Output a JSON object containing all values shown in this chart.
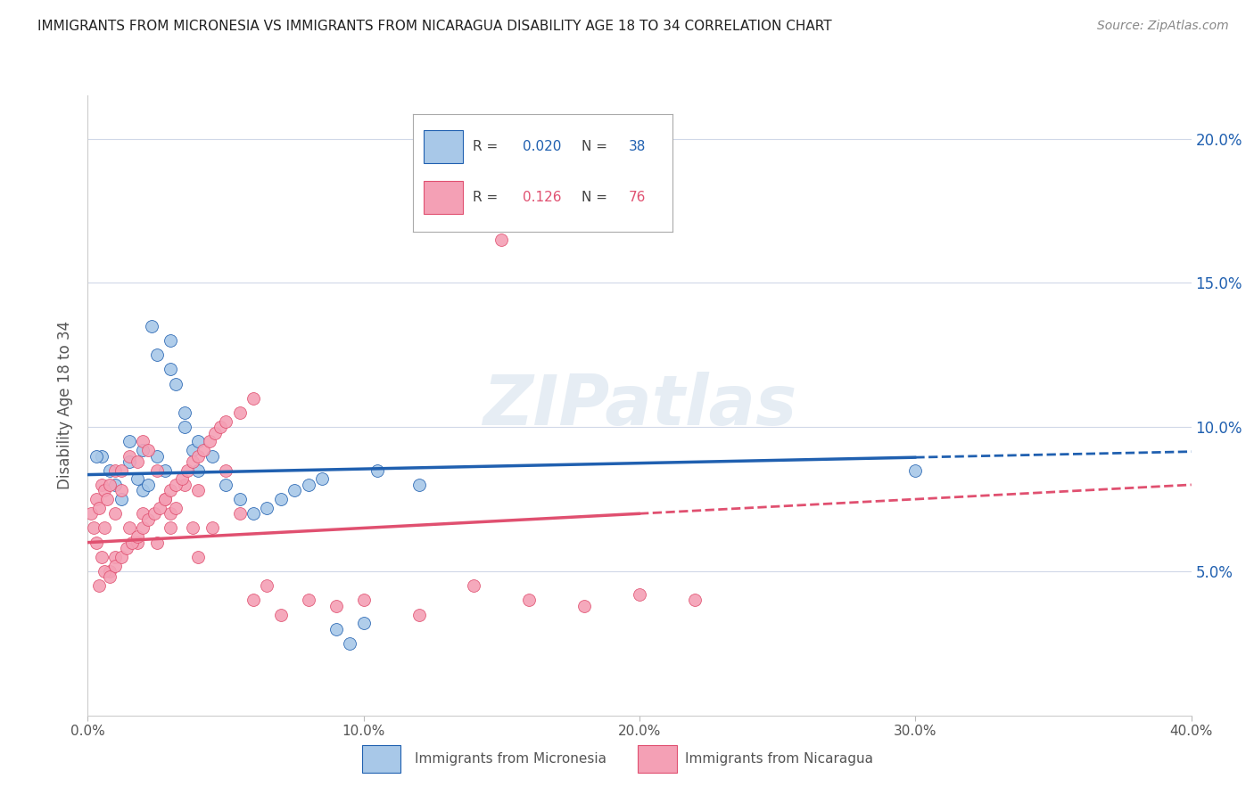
{
  "title": "IMMIGRANTS FROM MICRONESIA VS IMMIGRANTS FROM NICARAGUA DISABILITY AGE 18 TO 34 CORRELATION CHART",
  "source": "Source: ZipAtlas.com",
  "ylabel": "Disability Age 18 to 34",
  "ytick_values": [
    5.0,
    10.0,
    15.0,
    20.0
  ],
  "xtick_values": [
    0.0,
    10.0,
    20.0,
    30.0,
    40.0
  ],
  "xlim": [
    0.0,
    40.0
  ],
  "ylim": [
    0.0,
    21.5
  ],
  "legend1_R": "0.020",
  "legend1_N": "38",
  "legend2_R": "0.126",
  "legend2_N": "76",
  "color_blue": "#a8c8e8",
  "color_pink": "#f4a0b5",
  "line_blue": "#2060b0",
  "line_pink": "#e05070",
  "watermark": "ZIPatlas",
  "micronesia_x": [
    0.5,
    0.8,
    1.0,
    1.2,
    1.5,
    1.5,
    1.8,
    2.0,
    2.0,
    2.2,
    2.3,
    2.5,
    2.5,
    2.8,
    3.0,
    3.0,
    3.2,
    3.5,
    3.5,
    3.8,
    4.0,
    4.0,
    4.5,
    5.0,
    5.5,
    6.0,
    6.5,
    7.0,
    7.5,
    8.0,
    8.5,
    9.0,
    9.5,
    10.0,
    10.5,
    12.0,
    30.0,
    0.3
  ],
  "micronesia_y": [
    9.0,
    8.5,
    8.0,
    7.5,
    9.5,
    8.8,
    8.2,
    7.8,
    9.2,
    8.0,
    13.5,
    12.5,
    9.0,
    8.5,
    13.0,
    12.0,
    11.5,
    10.5,
    10.0,
    9.2,
    9.5,
    8.5,
    9.0,
    8.0,
    7.5,
    7.0,
    7.2,
    7.5,
    7.8,
    8.0,
    8.2,
    3.0,
    2.5,
    3.2,
    8.5,
    8.0,
    8.5,
    9.0
  ],
  "nicaragua_x": [
    0.1,
    0.2,
    0.3,
    0.3,
    0.4,
    0.5,
    0.5,
    0.6,
    0.6,
    0.7,
    0.8,
    0.8,
    1.0,
    1.0,
    1.0,
    1.2,
    1.2,
    1.5,
    1.5,
    1.8,
    1.8,
    2.0,
    2.0,
    2.2,
    2.5,
    2.5,
    2.8,
    3.0,
    3.0,
    3.2,
    3.5,
    3.8,
    4.0,
    4.0,
    4.5,
    5.0,
    5.5,
    6.0,
    6.5,
    7.0,
    8.0,
    9.0,
    10.0,
    12.0,
    14.0,
    15.0,
    16.0,
    18.0,
    20.0,
    22.0,
    0.4,
    0.6,
    0.8,
    1.0,
    1.2,
    1.4,
    1.6,
    1.8,
    2.0,
    2.2,
    2.4,
    2.6,
    2.8,
    3.0,
    3.2,
    3.4,
    3.6,
    3.8,
    4.0,
    4.2,
    4.4,
    4.6,
    4.8,
    5.0,
    5.5,
    6.0
  ],
  "nicaragua_y": [
    7.0,
    6.5,
    7.5,
    6.0,
    7.2,
    8.0,
    5.5,
    7.8,
    6.5,
    7.5,
    8.0,
    5.0,
    8.5,
    7.0,
    5.5,
    8.5,
    7.8,
    9.0,
    6.5,
    8.8,
    6.0,
    9.5,
    7.0,
    9.2,
    8.5,
    6.0,
    7.5,
    7.0,
    6.5,
    7.2,
    8.0,
    6.5,
    7.8,
    5.5,
    6.5,
    8.5,
    7.0,
    4.0,
    4.5,
    3.5,
    4.0,
    3.8,
    4.0,
    3.5,
    4.5,
    16.5,
    4.0,
    3.8,
    4.2,
    4.0,
    4.5,
    5.0,
    4.8,
    5.2,
    5.5,
    5.8,
    6.0,
    6.2,
    6.5,
    6.8,
    7.0,
    7.2,
    7.5,
    7.8,
    8.0,
    8.2,
    8.5,
    8.8,
    9.0,
    9.2,
    9.5,
    9.8,
    10.0,
    10.2,
    10.5,
    11.0
  ],
  "blue_line_x0": 0.0,
  "blue_line_x1": 40.0,
  "blue_line_y0": 8.35,
  "blue_line_y1": 9.15,
  "blue_solid_x1": 30.0,
  "pink_line_x0": 0.0,
  "pink_line_x1": 40.0,
  "pink_line_y0": 6.0,
  "pink_line_y1": 8.0,
  "pink_solid_x1": 20.0
}
